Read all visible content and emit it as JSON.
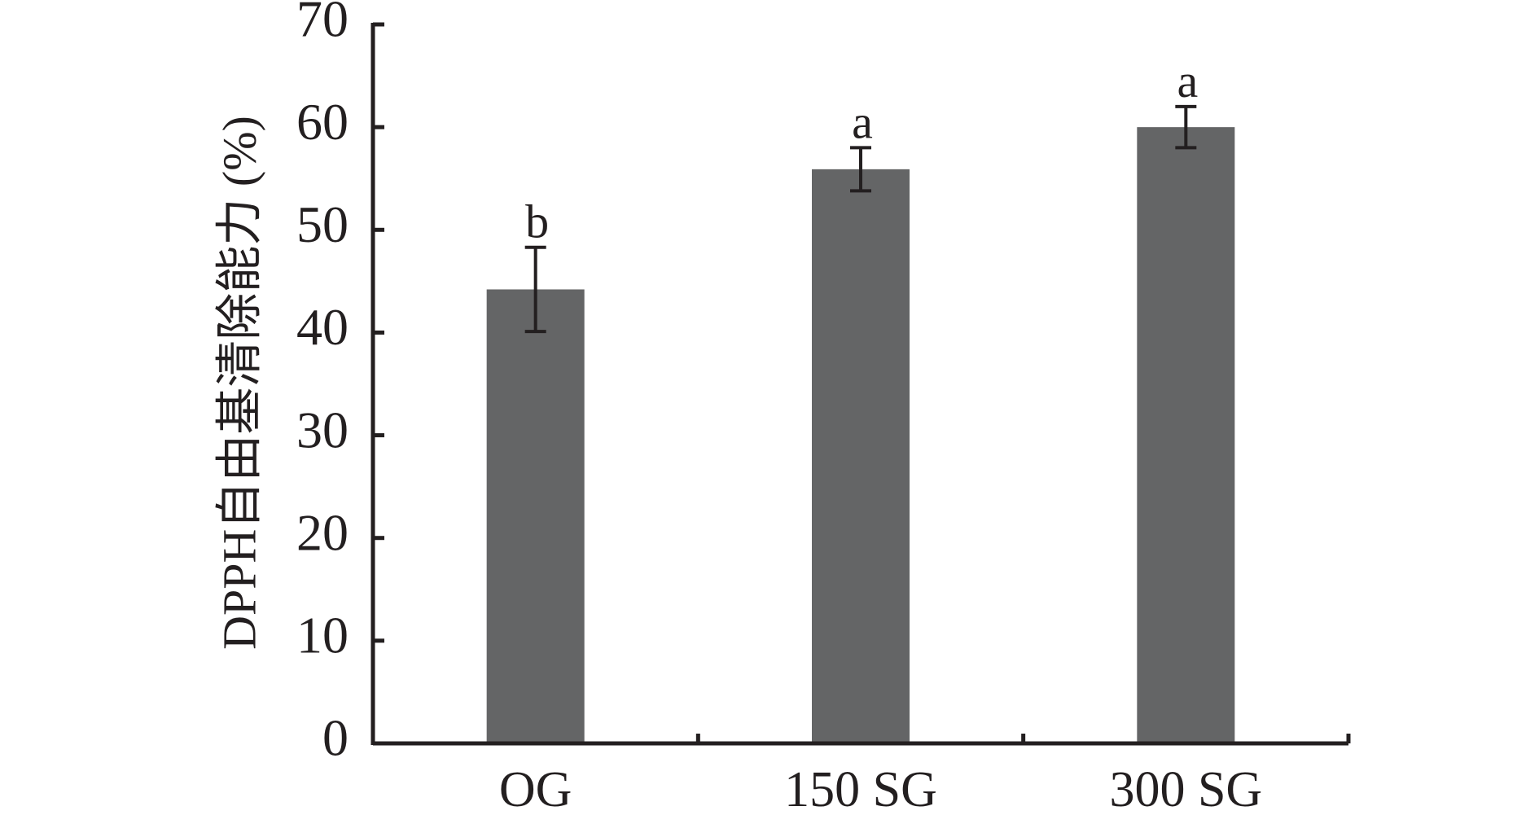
{
  "chart_data": {
    "type": "bar",
    "title": "",
    "xlabel": "",
    "ylabel": "DPPH自由基清除能力 (%)",
    "ylim": [
      0,
      70
    ],
    "yticks": [
      0,
      10,
      20,
      30,
      40,
      50,
      60,
      70
    ],
    "categories": [
      "OG",
      "150 SG",
      "300 SG"
    ],
    "series": [
      {
        "values": [
          44.2,
          55.9,
          60.0
        ],
        "error": [
          4.1,
          2.1,
          2.0
        ],
        "significance": [
          "b",
          "a",
          "a"
        ],
        "color": "#646566"
      }
    ],
    "grid": false,
    "legend": "none"
  }
}
